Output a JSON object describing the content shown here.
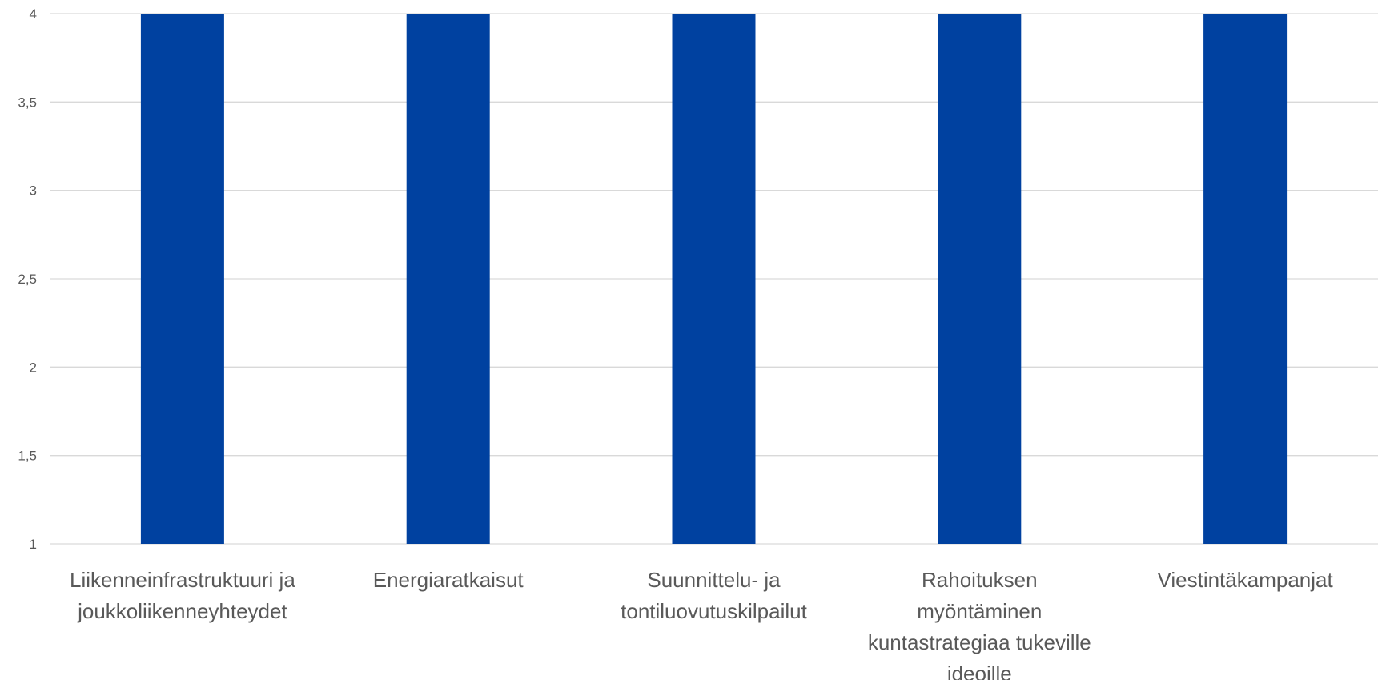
{
  "chart_data": {
    "type": "bar",
    "title": "",
    "xlabel": "",
    "ylabel": "",
    "ylim": [
      1,
      4
    ],
    "yticks": [
      "1",
      "1,5",
      "2",
      "2,5",
      "3",
      "3,5",
      "4"
    ],
    "ytick_values": [
      1,
      1.5,
      2,
      2.5,
      3,
      3.5,
      4
    ],
    "grid": true,
    "legend": "none",
    "bar_color": "#0041A0",
    "categories": [
      [
        "Liikenneinfrastruktuuri ja",
        "joukkoliikenneyhteydet"
      ],
      [
        "Energiaratkaisut"
      ],
      [
        "Suunnittelu- ja",
        "tontiluovutuskilpailut"
      ],
      [
        "Rahoituksen",
        "myöntäminen",
        "kuntastrategiaa tukeville",
        "ideoille"
      ],
      [
        "Viestintäkampanjat"
      ]
    ],
    "values": [
      4,
      4,
      4,
      4,
      4
    ]
  }
}
